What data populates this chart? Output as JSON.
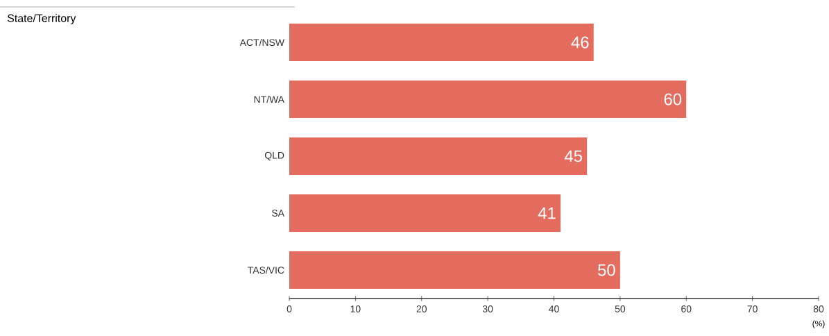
{
  "chart_data": {
    "type": "bar",
    "orientation": "horizontal",
    "annotations": [
      "State/Territory"
    ],
    "xlabel": "(%)",
    "categories": [
      "ACT/NSW",
      "NT/WA",
      "QLD",
      "SA",
      "TAS/VIC"
    ],
    "values": [
      46,
      60,
      45,
      41,
      50
    ],
    "color": "#e36c5e",
    "data_labels": true,
    "xlim": [
      0,
      80
    ],
    "xticks": [
      0,
      10,
      20,
      30,
      40,
      50,
      60,
      70,
      80
    ],
    "grid": false
  }
}
